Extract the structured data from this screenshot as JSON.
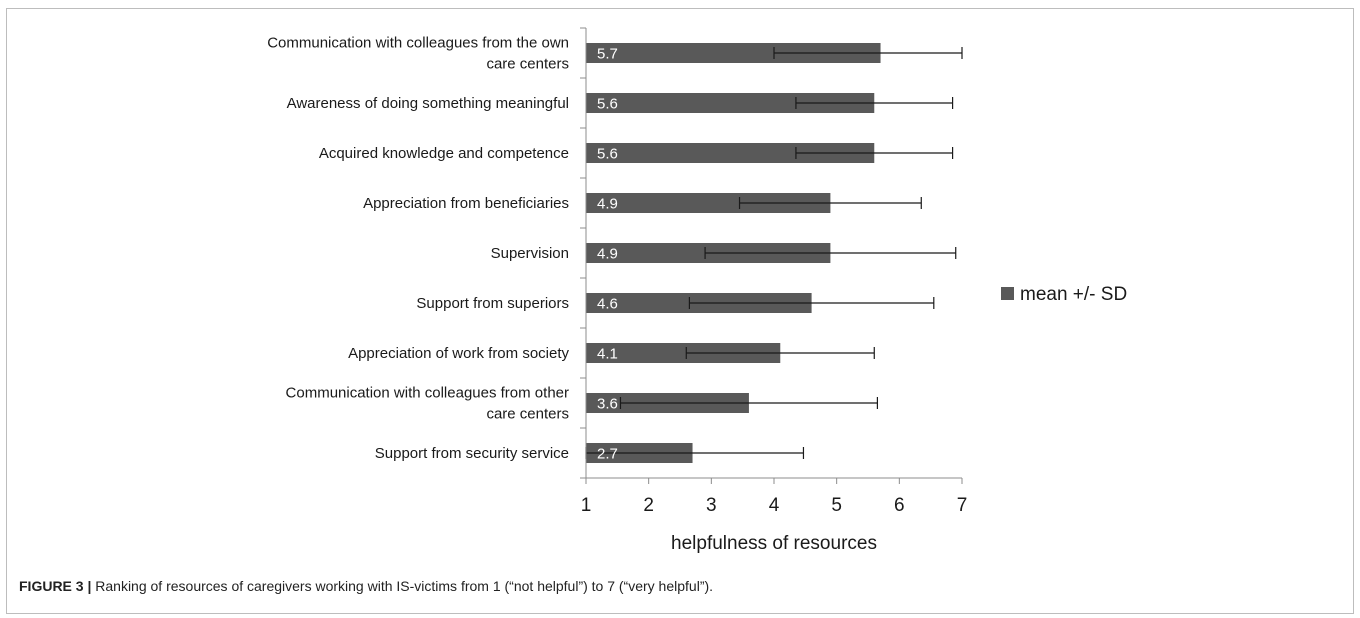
{
  "chart_data": {
    "type": "bar",
    "orientation": "horizontal",
    "categories": [
      [
        "Communication with colleagues from the own",
        "care centers"
      ],
      [
        "Awareness of doing something meaningful"
      ],
      [
        "Acquired knowledge and competence"
      ],
      [
        "Appreciation from beneficiaries"
      ],
      [
        "Supervision"
      ],
      [
        "Support from superiors"
      ],
      [
        "Appreciation of work from society"
      ],
      [
        "Communication with colleagues from other",
        "care centers"
      ],
      [
        "Support from security service"
      ]
    ],
    "series": [
      {
        "name": "mean +/- SD",
        "values": [
          5.7,
          5.6,
          5.6,
          4.9,
          4.9,
          4.6,
          4.1,
          3.6,
          2.7
        ],
        "labels": [
          "5.7",
          "5.6",
          "5.6",
          "4.9",
          "4.9",
          "4.6",
          "4.1",
          "3.6",
          "2.7"
        ],
        "sd": [
          1.7,
          1.25,
          1.25,
          1.45,
          2.0,
          1.95,
          1.5,
          2.05,
          1.77
        ],
        "color": "#595959"
      }
    ],
    "xlabel": "helpfulness of resources",
    "ylabel": "",
    "xlim": [
      1,
      7
    ],
    "xticks": [
      1,
      2,
      3,
      4,
      5,
      6,
      7
    ],
    "grid": false,
    "legend": "right"
  },
  "caption": {
    "label": "FIGURE 3 |",
    "text": " Ranking of resources of caregivers working with IS-victims from 1 (“not helpful”) to 7 (“very helpful”)."
  }
}
